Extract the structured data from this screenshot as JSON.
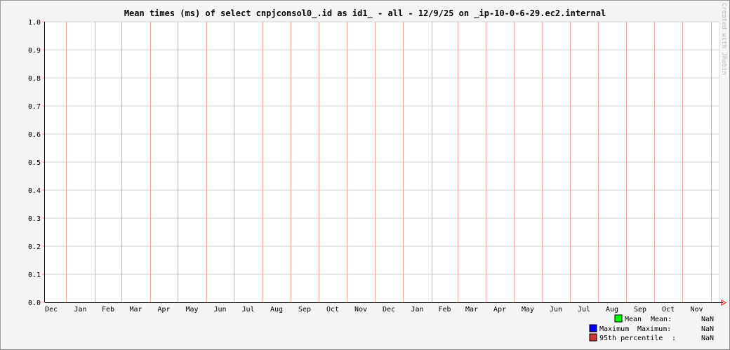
{
  "chart_data": {
    "type": "line",
    "title": "Mean times (ms) of select cnpjconsol0_.id as id1_ - all - 12/9/25 on _ip-10-0-6-29.ec2.internal",
    "watermark": "Created with JRobin",
    "ylim": [
      0,
      1.0
    ],
    "y_ticks": [
      "0.0",
      "0.1",
      "0.2",
      "0.3",
      "0.4",
      "0.5",
      "0.6",
      "0.7",
      "0.8",
      "0.9",
      "1.0"
    ],
    "x_ticks": [
      "Dec",
      "Jan",
      "Feb",
      "Mar",
      "Apr",
      "May",
      "Jun",
      "Jul",
      "Aug",
      "Sep",
      "Oct",
      "Nov",
      "Dec",
      "Jan",
      "Feb",
      "Mar",
      "Apr",
      "May",
      "Jun",
      "Jul",
      "Aug",
      "Sep",
      "Oct",
      "Nov"
    ],
    "grid": true,
    "series": [
      {
        "name": "Mean",
        "color": "#00ff00",
        "stat_label": "Mean:",
        "value": "NaN",
        "values": []
      },
      {
        "name": "Maximum",
        "color": "#0000ff",
        "stat_label": "Maximum:",
        "value": "NaN",
        "values": []
      },
      {
        "name": "95th percentile",
        "color": "#cc3333",
        "stat_label": ":",
        "value": "NaN",
        "values": []
      }
    ],
    "legend_position": "bottom-right",
    "colors": {
      "month_grid": "#f0a0a0",
      "minor_grid": "#d0d0d0",
      "axis": "#000000",
      "arrow": "#ff0000"
    }
  }
}
